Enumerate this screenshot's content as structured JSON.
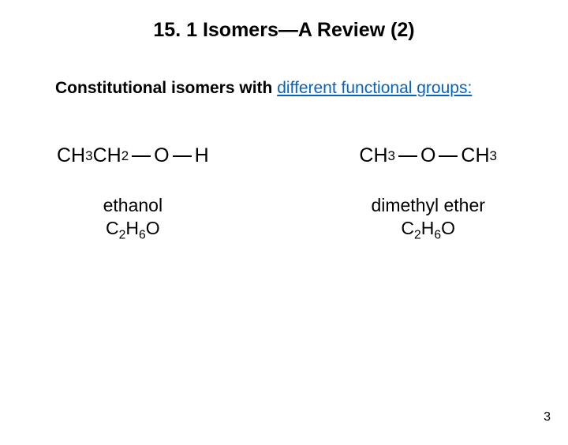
{
  "title": "15. 1 Isomers—A Review (2)",
  "subtitle_lead": "Constitutional isomers with ",
  "subtitle_link": "different functional groups:",
  "left": {
    "part1": "CH",
    "sub1": "3",
    "part2": "CH",
    "sub2": "2",
    "O": "O",
    "H": "H",
    "name": "ethanol",
    "mf_a": "C",
    "mf_b": "2",
    "mf_c": "H",
    "mf_d": "6",
    "mf_e": "O"
  },
  "right": {
    "part1": "CH",
    "sub1": "3",
    "O": "O",
    "part2": "CH",
    "sub2": "3",
    "name": "dimethyl ether",
    "mf_a": "C",
    "mf_b": "2",
    "mf_c": "H",
    "mf_d": "6",
    "mf_e": "O"
  },
  "page_number": "3",
  "colors": {
    "link": "#0563c1",
    "text": "#000000",
    "background": "#ffffff"
  }
}
